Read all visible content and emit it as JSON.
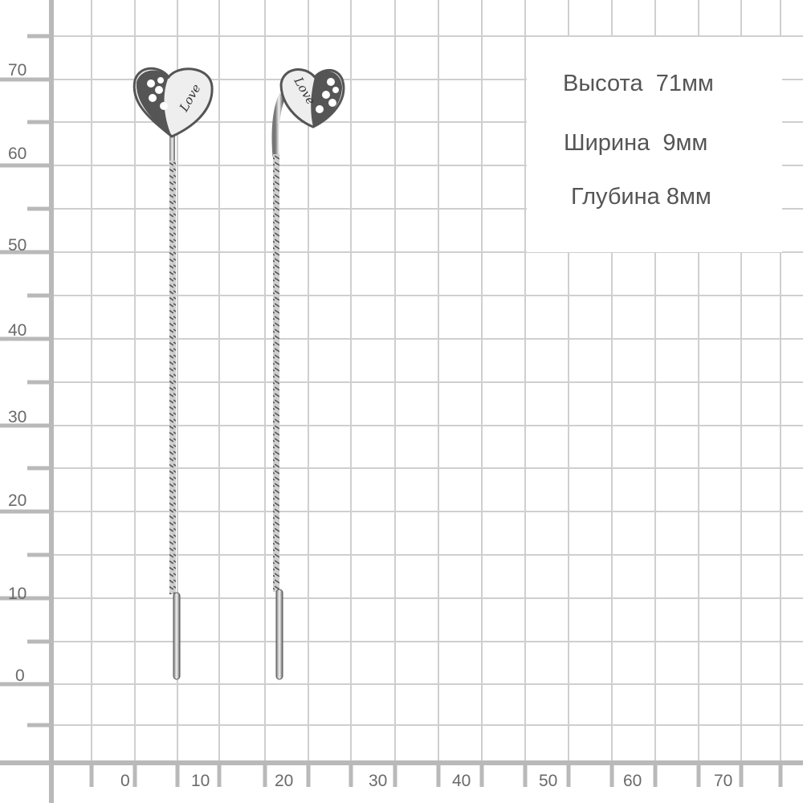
{
  "colors": {
    "grid": "#cfcfcf",
    "axis": "#b9b9b9",
    "label": "#6a6a6a",
    "metal": "#d9d9d9"
  },
  "y_axis": {
    "labels": [
      "70",
      "60",
      "50",
      "40",
      "30",
      "20",
      "10",
      "0"
    ]
  },
  "x_axis": {
    "labels": [
      "0",
      "10",
      "20",
      "30",
      "40",
      "50",
      "60",
      "70"
    ]
  },
  "dimensions": {
    "height": "Высота  71мм",
    "width": "Ширина  9мм",
    "depth": "Глубина 8мм"
  },
  "product": {
    "engraving": "Love"
  }
}
